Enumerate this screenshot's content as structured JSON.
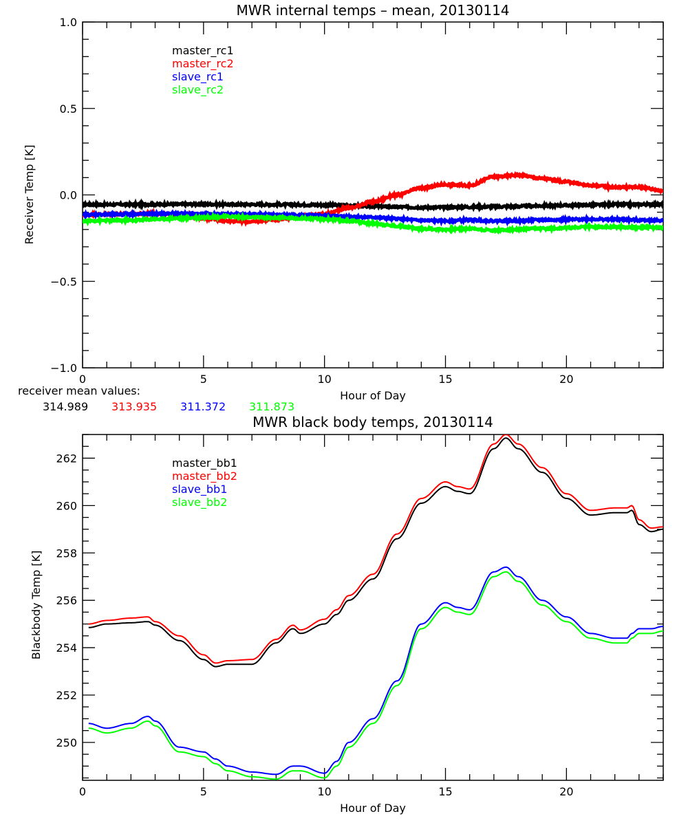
{
  "chart_data": [
    {
      "type": "line",
      "title": "MWR internal temps – mean, 20130114",
      "xlabel": "Hour of Day",
      "ylabel": "Receiver Temp [K]",
      "xlim": [
        0,
        24
      ],
      "ylim": [
        -1.0,
        1.0
      ],
      "xticks": [
        "0",
        "5",
        "10",
        "15",
        "20"
      ],
      "yticks": [
        "-1.0",
        "-0.5",
        "0.0",
        "0.5",
        "1.0"
      ],
      "grid": false,
      "legend_position": "top-left",
      "x": [
        0,
        1,
        2,
        3,
        4,
        5,
        6,
        7,
        8,
        9,
        10,
        11,
        12,
        13,
        14,
        15,
        16,
        17,
        18,
        19,
        20,
        21,
        22,
        23,
        24
      ],
      "series": [
        {
          "name": "master_rc1",
          "color": "#000000",
          "values": [
            -0.055,
            -0.056,
            -0.055,
            -0.055,
            -0.054,
            -0.054,
            -0.055,
            -0.055,
            -0.056,
            -0.057,
            -0.058,
            -0.062,
            -0.066,
            -0.07,
            -0.072,
            -0.072,
            -0.07,
            -0.068,
            -0.066,
            -0.063,
            -0.06,
            -0.058,
            -0.056,
            -0.055,
            -0.055
          ]
        },
        {
          "name": "master_rc2",
          "color": "#ff0000",
          "values": [
            -0.115,
            -0.112,
            -0.11,
            -0.108,
            -0.115,
            -0.135,
            -0.15,
            -0.155,
            -0.14,
            -0.125,
            -0.11,
            -0.075,
            -0.04,
            0.0,
            0.04,
            0.06,
            0.055,
            0.105,
            0.115,
            0.095,
            0.075,
            0.055,
            0.045,
            0.045,
            0.025
          ]
        },
        {
          "name": "slave_rc1",
          "color": "#0000ff",
          "values": [
            -0.115,
            -0.113,
            -0.112,
            -0.11,
            -0.108,
            -0.11,
            -0.112,
            -0.112,
            -0.115,
            -0.118,
            -0.12,
            -0.125,
            -0.13,
            -0.138,
            -0.148,
            -0.15,
            -0.145,
            -0.15,
            -0.15,
            -0.145,
            -0.143,
            -0.14,
            -0.142,
            -0.145,
            -0.148
          ]
        },
        {
          "name": "slave_rc2",
          "color": "#00ff00",
          "values": [
            -0.15,
            -0.148,
            -0.147,
            -0.14,
            -0.135,
            -0.13,
            -0.125,
            -0.13,
            -0.132,
            -0.135,
            -0.14,
            -0.15,
            -0.165,
            -0.18,
            -0.195,
            -0.2,
            -0.195,
            -0.205,
            -0.2,
            -0.195,
            -0.19,
            -0.185,
            -0.185,
            -0.188,
            -0.19
          ]
        }
      ],
      "annotation": {
        "label": "receiver mean values:",
        "values": [
          {
            "text": "314.989",
            "color": "#000000"
          },
          {
            "text": "313.935",
            "color": "#ff0000"
          },
          {
            "text": "311.372",
            "color": "#0000ff"
          },
          {
            "text": "311.873",
            "color": "#00ff00"
          }
        ]
      }
    },
    {
      "type": "line",
      "title": "MWR black body temps, 20130114",
      "xlabel": "Hour of Day",
      "ylabel": "Blackbody Temp [K]",
      "xlim": [
        0,
        24
      ],
      "ylim": [
        248.4,
        263.0
      ],
      "xticks": [
        "0",
        "5",
        "10",
        "15",
        "20"
      ],
      "yticks": [
        "250",
        "252",
        "254",
        "256",
        "258",
        "260",
        "262"
      ],
      "grid": false,
      "legend_position": "top-left",
      "x": [
        0.25,
        1,
        2,
        2.7,
        3,
        4,
        5,
        5.5,
        6,
        7,
        8,
        8.7,
        9,
        10,
        10.5,
        11,
        12,
        13,
        14,
        15,
        15.5,
        16,
        17,
        17.5,
        18,
        19,
        20,
        21,
        22,
        22.5,
        22.7,
        23,
        23.5,
        24
      ],
      "series": [
        {
          "name": "master_bb1",
          "color": "#000000",
          "values": [
            254.85,
            255.0,
            255.05,
            255.1,
            254.95,
            254.3,
            253.5,
            253.2,
            253.3,
            253.3,
            254.2,
            254.8,
            254.6,
            255.0,
            255.4,
            256.0,
            256.9,
            258.6,
            260.1,
            260.8,
            260.6,
            260.5,
            262.4,
            262.85,
            262.4,
            261.4,
            260.3,
            259.6,
            259.7,
            259.7,
            259.8,
            259.2,
            258.9,
            259.0
          ]
        },
        {
          "name": "master_bb2",
          "color": "#ff0000",
          "values": [
            255.0,
            255.15,
            255.25,
            255.3,
            255.1,
            254.5,
            253.7,
            253.35,
            253.45,
            253.5,
            254.35,
            254.95,
            254.75,
            255.2,
            255.6,
            256.2,
            257.1,
            258.8,
            260.3,
            261.0,
            260.8,
            260.7,
            262.6,
            263.0,
            262.6,
            261.6,
            260.5,
            259.8,
            259.9,
            259.9,
            260.0,
            259.4,
            259.05,
            259.1
          ]
        },
        {
          "name": "slave_bb1",
          "color": "#0000ff",
          "values": [
            250.8,
            250.6,
            250.8,
            251.1,
            250.9,
            249.8,
            249.6,
            249.3,
            249.0,
            248.75,
            248.65,
            249.0,
            249.0,
            248.7,
            249.2,
            250.0,
            251.0,
            252.6,
            255.0,
            255.9,
            255.7,
            255.6,
            257.2,
            257.4,
            257.0,
            256.0,
            255.3,
            254.6,
            254.4,
            254.4,
            254.6,
            254.8,
            254.8,
            254.9
          ]
        },
        {
          "name": "slave_bb2",
          "color": "#00ff00",
          "values": [
            250.6,
            250.4,
            250.6,
            250.9,
            250.7,
            249.6,
            249.4,
            249.1,
            248.8,
            248.55,
            248.45,
            248.8,
            248.8,
            248.5,
            249.0,
            249.8,
            250.8,
            252.4,
            254.8,
            255.7,
            255.5,
            255.4,
            257.0,
            257.2,
            256.8,
            255.8,
            255.1,
            254.4,
            254.2,
            254.2,
            254.4,
            254.6,
            254.6,
            254.7
          ]
        }
      ]
    }
  ]
}
